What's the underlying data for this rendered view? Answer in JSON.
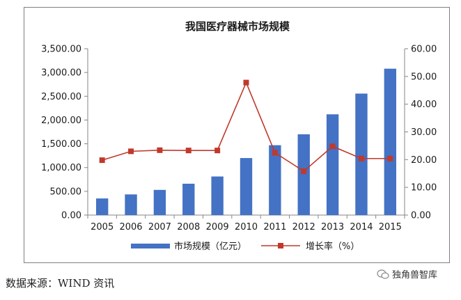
{
  "chart_data": {
    "type": "bar+line",
    "title": "我国医疗器械市场规模",
    "categories": [
      "2005",
      "2006",
      "2007",
      "2008",
      "2009",
      "2010",
      "2011",
      "2012",
      "2013",
      "2014",
      "2015"
    ],
    "series": [
      {
        "name": "市场规模（亿元）",
        "type": "bar",
        "axis": "left",
        "color": "#4472c4",
        "values": [
          350,
          435,
          530,
          660,
          812,
          1200,
          1470,
          1700,
          2120,
          2556,
          3080
        ]
      },
      {
        "name": "增长率（%）",
        "type": "line",
        "axis": "right",
        "color": "#c0392b",
        "values": [
          19.8,
          23,
          23.4,
          23.3,
          23.3,
          47.8,
          22.5,
          15.8,
          24.8,
          20.4,
          20.4
        ]
      }
    ],
    "y_left": {
      "ylim": [
        0,
        3500
      ],
      "ticks": [
        "0.00",
        "500.00",
        "1,000.00",
        "1,500.00",
        "2,000.00",
        "2,500.00",
        "3,000.00",
        "3,500.00"
      ]
    },
    "y_right": {
      "ylim": [
        0,
        60
      ],
      "ticks": [
        "0.00",
        "10.00",
        "20.00",
        "30.00",
        "40.00",
        "50.00",
        "60.00"
      ]
    },
    "grid": false,
    "legend_position": "bottom"
  },
  "source": "数据来源：WIND 资讯",
  "watermark": "独角兽智库"
}
